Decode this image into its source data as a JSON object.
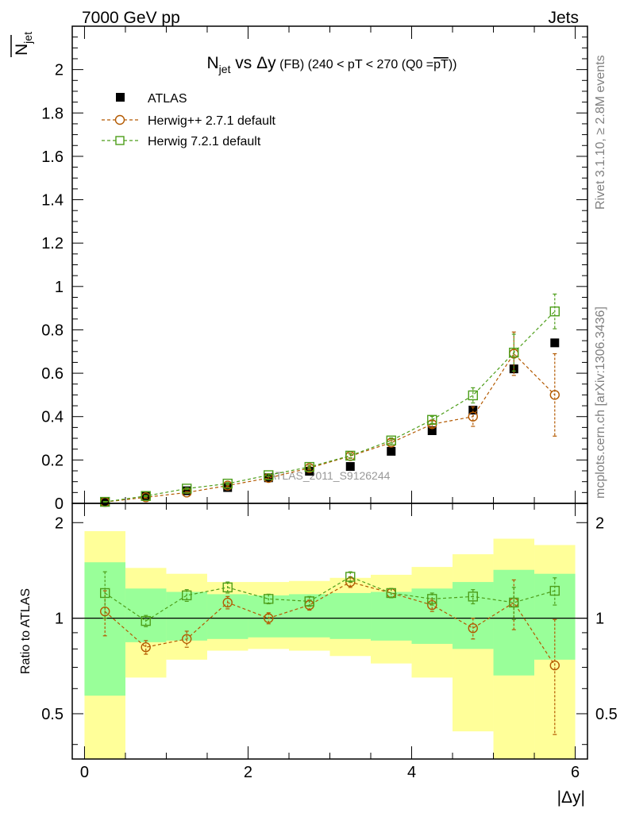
{
  "header": {
    "energy_label": "7000 GeV pp",
    "process_label": "Jets"
  },
  "side_labels": {
    "rivet": "Rivet 3.1.10, ≥ 2.8M events",
    "mcplots": "mcplots.cern.ch [arXiv:1306.3436]"
  },
  "watermark": "ATLAS_2011_S9126244",
  "chart_data": [
    {
      "type": "scatter",
      "title_parts": {
        "n": "N",
        "sub": "jet",
        "vs": " vs ",
        "dy": "Δy",
        "fb": " (FB) ",
        "range": "(240 < pT < 270 (Q0 =",
        "pt": "pT",
        "close": "))"
      },
      "ylabel_parts": {
        "n": "N",
        "sub": "jet"
      },
      "xlim": [
        -0.15,
        6.15
      ],
      "ylim": [
        0,
        2.2
      ],
      "y_ticks": [
        0,
        0.2,
        0.4,
        0.6,
        0.8,
        1,
        1.2,
        1.4,
        1.6,
        1.8,
        2
      ],
      "y_tick_labels": [
        "0",
        "0.2",
        "0.4",
        "0.6",
        "0.8",
        "1",
        "1.2",
        "1.4",
        "1.6",
        "1.8",
        "2"
      ],
      "x": [
        0.25,
        0.75,
        1.25,
        1.75,
        2.25,
        2.75,
        3.25,
        3.75,
        4.25,
        4.75,
        5.25,
        5.75
      ],
      "legend": {
        "atlas": "ATLAS",
        "herwigpp": "Herwig++ 2.7.1 default",
        "herwig7": "Herwig 7.2.1 default"
      },
      "series": [
        {
          "name": "ATLAS",
          "color": "#000000",
          "marker": "filled-square",
          "values": [
            0.006,
            0.035,
            0.058,
            0.073,
            0.118,
            0.148,
            0.17,
            0.24,
            0.335,
            0.43,
            0.62,
            0.74
          ]
        },
        {
          "name": "Herwig++ 2.7.1 default",
          "color": "#b35900",
          "marker": "open-circle",
          "values": [
            0.006,
            0.028,
            0.05,
            0.082,
            0.117,
            0.163,
            0.218,
            0.28,
            0.365,
            0.4,
            0.69,
            0.5
          ],
          "errors": [
            0.002,
            0.004,
            0.004,
            0.006,
            0.006,
            0.008,
            0.01,
            0.012,
            0.015,
            0.045,
            0.1,
            0.19
          ]
        },
        {
          "name": "Herwig 7.2.1 default",
          "color": "#4d9e1a",
          "marker": "open-square",
          "values": [
            0.007,
            0.034,
            0.068,
            0.091,
            0.13,
            0.168,
            0.22,
            0.29,
            0.385,
            0.498,
            0.695,
            0.885
          ],
          "errors": [
            0.002,
            0.003,
            0.004,
            0.005,
            0.006,
            0.008,
            0.01,
            0.012,
            0.016,
            0.035,
            0.085,
            0.08
          ]
        }
      ]
    },
    {
      "type": "scatter",
      "ylabel": "Ratio to ATLAS",
      "xlabel": "|Δy|",
      "scale": "log",
      "xlim": [
        -0.15,
        6.15
      ],
      "ylim": [
        0.36,
        2.3
      ],
      "x_ticks": [
        0,
        2,
        4,
        6
      ],
      "x_tick_labels": [
        "0",
        "2",
        "4",
        "6"
      ],
      "y_ticks": [
        0.5,
        1,
        2
      ],
      "y_tick_labels": [
        "0.5",
        "1",
        "2"
      ],
      "band_edges": [
        0,
        0.5,
        1,
        1.5,
        2,
        2.5,
        3,
        3.5,
        4,
        4.5,
        5,
        5.5,
        6
      ],
      "band_inner": {
        "color": "#99ff99",
        "lo": [
          0.57,
          0.84,
          0.85,
          0.86,
          0.87,
          0.87,
          0.86,
          0.85,
          0.83,
          0.8,
          0.66,
          0.74
        ],
        "hi": [
          1.5,
          1.24,
          1.21,
          1.19,
          1.18,
          1.19,
          1.2,
          1.21,
          1.24,
          1.3,
          1.42,
          1.38
        ]
      },
      "band_outer": {
        "color": "#ffff99",
        "lo": [
          0.36,
          0.65,
          0.74,
          0.79,
          0.8,
          0.79,
          0.76,
          0.72,
          0.65,
          0.44,
          0.36,
          0.36
        ],
        "hi": [
          1.88,
          1.44,
          1.38,
          1.3,
          1.3,
          1.31,
          1.34,
          1.37,
          1.45,
          1.59,
          1.78,
          1.7
        ]
      },
      "series": [
        {
          "name": "Herwig++ 2.7.1 default",
          "color": "#b35900",
          "marker": "open-circle",
          "values": [
            1.05,
            0.81,
            0.86,
            1.12,
            1.0,
            1.1,
            1.3,
            1.2,
            1.1,
            0.93,
            1.12,
            0.71
          ],
          "errors": [
            0.17,
            0.04,
            0.05,
            0.05,
            0.04,
            0.04,
            0.05,
            0.04,
            0.05,
            0.07,
            0.2,
            0.28
          ]
        },
        {
          "name": "Herwig 7.2.1 default",
          "color": "#4d9e1a",
          "marker": "open-square",
          "values": [
            1.2,
            0.98,
            1.18,
            1.25,
            1.15,
            1.13,
            1.35,
            1.2,
            1.15,
            1.17,
            1.12,
            1.22
          ],
          "errors": [
            0.2,
            0.04,
            0.05,
            0.05,
            0.04,
            0.04,
            0.05,
            0.04,
            0.05,
            0.06,
            0.13,
            0.12
          ]
        }
      ]
    }
  ]
}
